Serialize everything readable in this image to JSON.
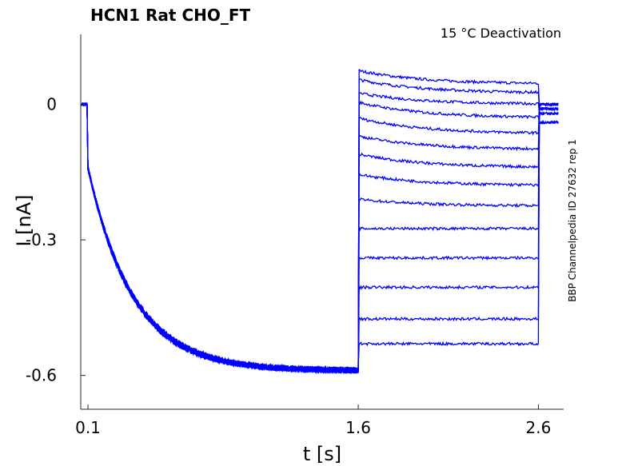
{
  "chart_data": {
    "type": "line",
    "title": "HCN1  Rat  CHO_FT",
    "annotation": "15 °C  Deactivation",
    "side_label": "BBP Channelpedia ID 27632 rep 1",
    "xlabel": "t [s]",
    "ylabel": "I [nA]",
    "xlim": [
      0.06,
      2.74
    ],
    "ylim": [
      -0.675,
      0.155
    ],
    "x_ticks": [
      0.1,
      1.6,
      2.6
    ],
    "x_tick_labels": [
      "0.1",
      "1.6",
      "2.6"
    ],
    "y_ticks": [
      0,
      -0.3,
      -0.6
    ],
    "y_tick_labels": [
      "0",
      "-0.3",
      "-0.6"
    ],
    "line_color": "#0000ff",
    "protocol": {
      "holding_end": 0.1,
      "activation_end": 1.6,
      "deactivation_end": 2.6,
      "trace_end": 2.71,
      "activation_plateau": -0.59,
      "activation_tau": 0.25,
      "initial_jump": -0.14
    },
    "series_end_levels": [
      0.045,
      0.025,
      0.0,
      -0.03,
      -0.065,
      -0.1,
      -0.14,
      -0.18,
      -0.225,
      -0.275,
      -0.34,
      -0.405,
      -0.475,
      -0.53
    ],
    "series_start_levels": [
      0.075,
      0.055,
      0.025,
      0.005,
      -0.03,
      -0.07,
      -0.11,
      -0.155,
      -0.21,
      -0.275,
      -0.34,
      -0.405,
      -0.475,
      -0.53
    ],
    "series_tail_levels": [
      0.0,
      -0.01,
      -0.02,
      -0.04
    ]
  }
}
